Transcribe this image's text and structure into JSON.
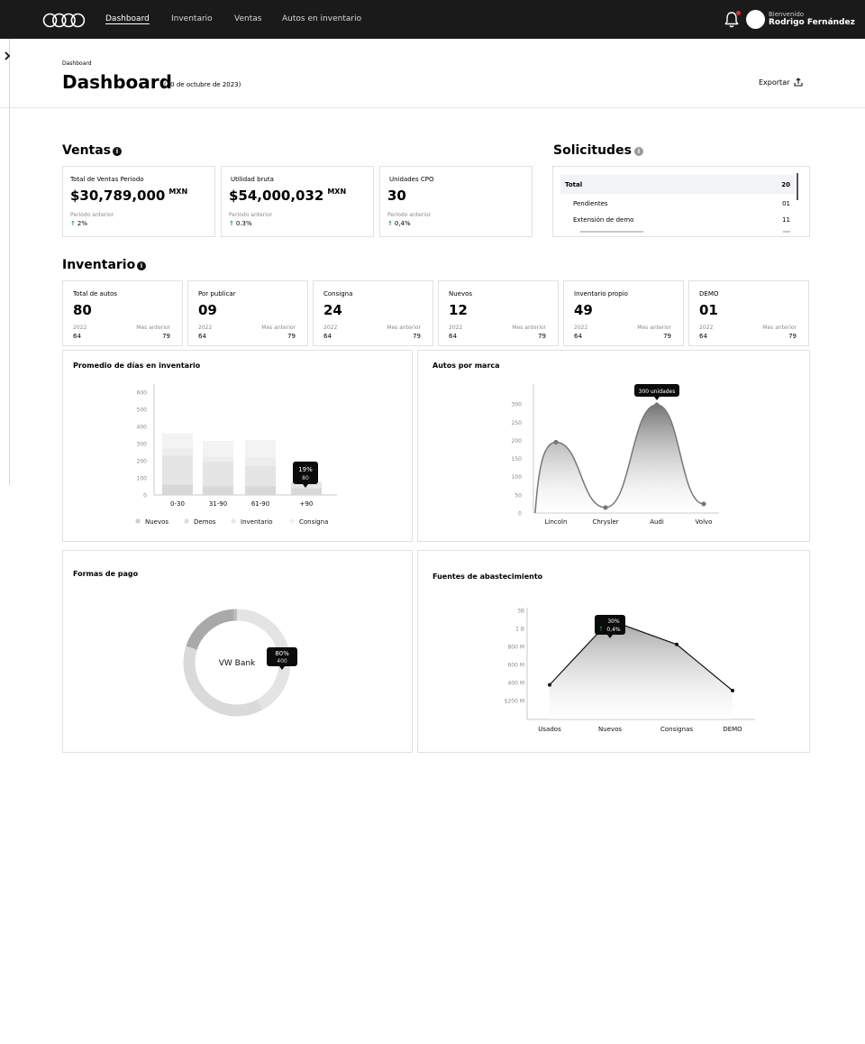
{
  "nav": {
    "links": [
      "Dashboard",
      "Inventario",
      "Ventas",
      "Autos en inventario"
    ],
    "active": "Dashboard",
    "welcome": "Bienvenido",
    "user": "Rodrigo Fernández"
  },
  "page": {
    "breadcrumb": "Dashboard",
    "title": "Dashboard",
    "date": "(30 de octubre de 2023)",
    "export_label": "Exportar"
  },
  "ventas": {
    "title": "Ventas",
    "cards": [
      {
        "label": "Total de Ventas Periodo",
        "value": "$30,789,000",
        "currency": "MXN",
        "sub": "Periodo anterior",
        "delta": "2%"
      },
      {
        "label": "Utilidad bruta",
        "value": "$54,000,032",
        "currency": "MXN",
        "sub": "Periodo anterior",
        "delta": "0.3%"
      },
      {
        "label": "Unidades CPO",
        "value": "30",
        "currency": "",
        "sub": "Periodo anterior",
        "delta": "0,4%"
      }
    ]
  },
  "solicitudes": {
    "title": "Solicitudes",
    "rows": [
      {
        "label": "Total",
        "value": "20"
      },
      {
        "label": "Pendientes",
        "value": "01"
      },
      {
        "label": "Extensión de demo",
        "value": "11"
      }
    ]
  },
  "inventario": {
    "title": "Inventario",
    "cards": [
      {
        "label": "Total de autos",
        "value": "80",
        "year_label": "2022",
        "year_value": "64",
        "prev_label": "Mes anterior",
        "prev_value": "79"
      },
      {
        "label": "Por publicar",
        "value": "09",
        "year_label": "2022",
        "year_value": "64",
        "prev_label": "Mes anterior",
        "prev_value": "79"
      },
      {
        "label": "Consigna",
        "value": "24",
        "year_label": "2022",
        "year_value": "64",
        "prev_label": "Mes anterior",
        "prev_value": "79"
      },
      {
        "label": "Nuevos",
        "value": "12",
        "year_label": "2022",
        "year_value": "64",
        "prev_label": "Mes anterior",
        "prev_value": "79"
      },
      {
        "label": "Inventario propio",
        "value": "49",
        "year_label": "2022",
        "year_value": "64",
        "prev_label": "Mes anterior",
        "prev_value": "79"
      },
      {
        "label": "DEMO",
        "value": "01",
        "year_label": "2022",
        "year_value": "64",
        "prev_label": "Mes anterior",
        "prev_value": "79"
      }
    ]
  },
  "colors": {
    "navbar": "#1a1a1a",
    "positive": "#1e9e3c",
    "notification": "#e02b2b"
  },
  "chart_data": [
    {
      "type": "bar",
      "title": "Promedio de días en inventario",
      "categories": [
        "0-30",
        "31-90",
        "61-90",
        "+90"
      ],
      "series": [
        {
          "name": "Nuevos",
          "values": [
            60,
            50,
            50,
            40
          ]
        },
        {
          "name": "Demos",
          "values": [
            170,
            145,
            120,
            35
          ]
        },
        {
          "name": "Inventario",
          "values": [
            40,
            30,
            50,
            0
          ]
        },
        {
          "name": "Consigna",
          "values": [
            90,
            90,
            100,
            0
          ]
        }
      ],
      "yticks": [
        0,
        100,
        200,
        300,
        400,
        500,
        600
      ],
      "ylim": [
        0,
        620
      ],
      "tooltip": {
        "category": "+90",
        "line1": "19%",
        "line2": "80"
      },
      "legend": "bottom"
    },
    {
      "type": "area",
      "title": "Autos por marca",
      "categories": [
        "Lincoln",
        "Chrysler",
        "Audi",
        "Volvo"
      ],
      "values": [
        195,
        15,
        298,
        25
      ],
      "yticks": [
        0,
        50,
        100,
        150,
        200,
        250,
        300
      ],
      "ylim": [
        0,
        355
      ],
      "tooltip": {
        "category": "Audi",
        "text": "300 unidades"
      }
    },
    {
      "type": "pie",
      "title": "Formas de pago",
      "center_label": "VW Bank",
      "slices": [
        {
          "value": 42
        },
        {
          "value": 19
        },
        {
          "value": 38
        },
        {
          "value": 1
        }
      ],
      "tooltip": {
        "line1": "80%",
        "line2": "400"
      }
    },
    {
      "type": "area",
      "title": "Fuentes de abastecimiento",
      "categories": [
        "Usados",
        "Nuevos",
        "Consignas",
        "DEMO"
      ],
      "values": [
        300,
        860,
        650,
        250
      ],
      "yticks": [
        "$200 M",
        "400 M",
        "600 M",
        "800 M",
        "1 B",
        "3B"
      ],
      "tooltip": {
        "category": "Nuevos",
        "line1": "30%",
        "line2": "0,4%"
      }
    }
  ]
}
